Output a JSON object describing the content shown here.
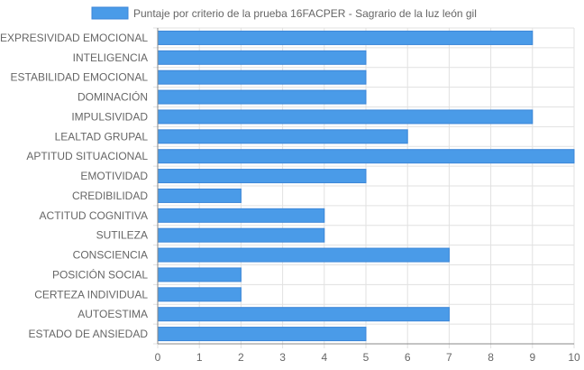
{
  "colors": {
    "bar_fill": "#4a9be8",
    "bar_stroke": "#3b86d8",
    "grid": "#e1e1e1",
    "axis": "#888888",
    "text": "#666666"
  },
  "chart_data": {
    "type": "bar",
    "orientation": "horizontal",
    "legend_position": "top",
    "grid": true,
    "xlim": [
      0,
      10
    ],
    "x_ticks": [
      "0",
      "1",
      "2",
      "3",
      "4",
      "5",
      "6",
      "7",
      "8",
      "9",
      "10"
    ],
    "categories": [
      "EXPRESIVIDAD EMOCIONAL",
      "INTELIGENCIA",
      "ESTABILIDAD EMOCIONAL",
      "DOMINACIÓN",
      "IMPULSIVIDAD",
      "LEALTAD GRUPAL",
      "APTITUD SITUACIONAL",
      "EMOTIVIDAD",
      "CREDIBILIDAD",
      "ACTITUD COGNITIVA",
      "SUTILEZA",
      "CONSCIENCIA",
      "POSICIÓN SOCIAL",
      "CERTEZA INDIVIDUAL",
      "AUTOESTIMA",
      "ESTADO DE ANSIEDAD"
    ],
    "series": [
      {
        "name": "Puntaje por criterio de la prueba 16FACPER - Sagrario de la luz león gil",
        "values": [
          9,
          5,
          5,
          5,
          9,
          6,
          10,
          5,
          2,
          4,
          4,
          7,
          2,
          2,
          7,
          5
        ]
      }
    ]
  }
}
